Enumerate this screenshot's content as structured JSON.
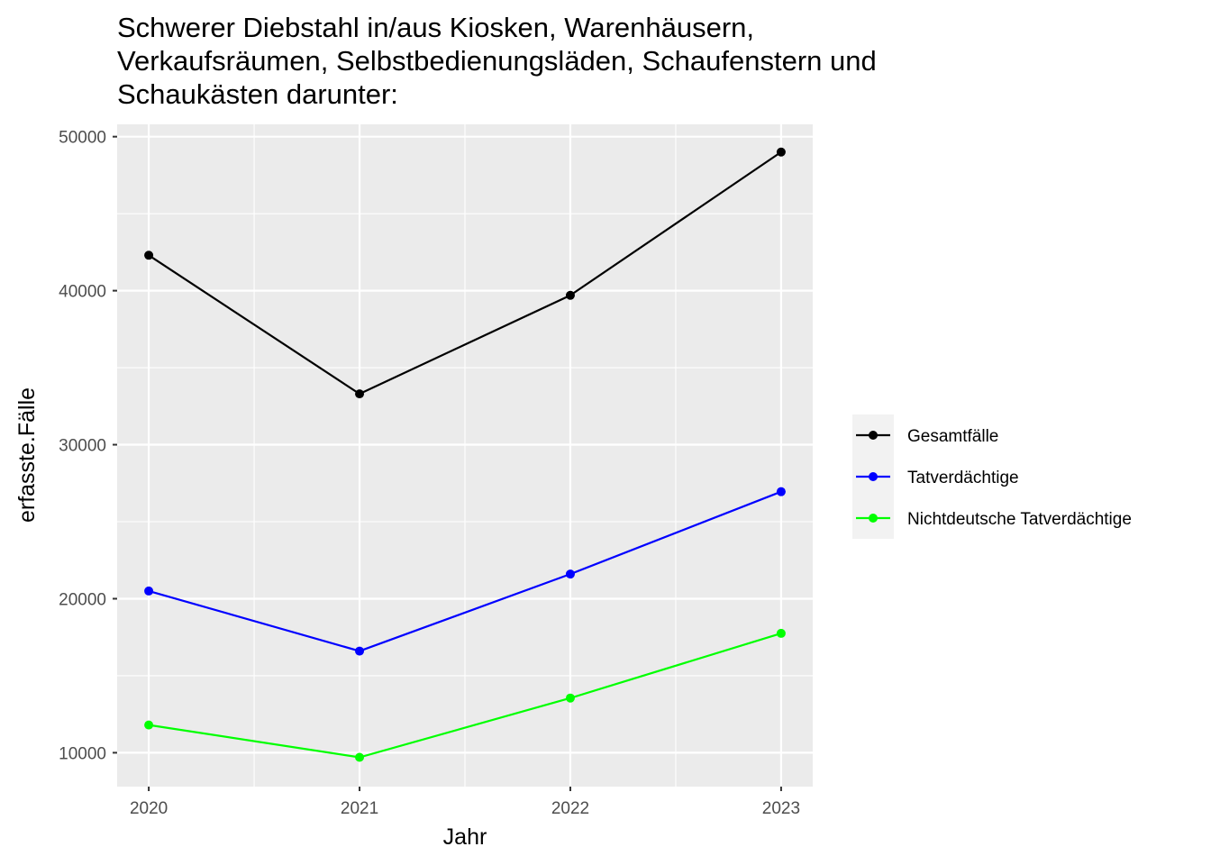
{
  "chart_data": {
    "type": "line",
    "title_lines": [
      "Schwerer Diebstahl in/aus Kiosken, Warenhäusern,",
      "Verkaufsräumen, Selbstbedienungsläden, Schaufenstern und",
      "Schaukästen darunter:"
    ],
    "xlabel": "Jahr",
    "ylabel": "erfasste.Fälle",
    "x": [
      2020,
      2021,
      2022,
      2023
    ],
    "x_ticks": [
      "2020",
      "2021",
      "2022",
      "2023"
    ],
    "y_ticks": [
      "10000",
      "20000",
      "30000",
      "40000",
      "50000"
    ],
    "ylim": [
      7800,
      50800
    ],
    "grid": true,
    "panel_background": "#ebebeb",
    "grid_color": "#ffffff",
    "legend_position": "right",
    "series": [
      {
        "name": "Gesamtfälle",
        "color": "#000000",
        "values": [
          42300,
          33300,
          39700,
          49000
        ]
      },
      {
        "name": "Tatverdächtige",
        "color": "#0000ff",
        "values": [
          20500,
          16600,
          21600,
          26950
        ]
      },
      {
        "name": "Nichtdeutsche Tatverdächtige",
        "color": "#00ff00",
        "values": [
          11800,
          9700,
          13550,
          17750
        ]
      }
    ]
  }
}
